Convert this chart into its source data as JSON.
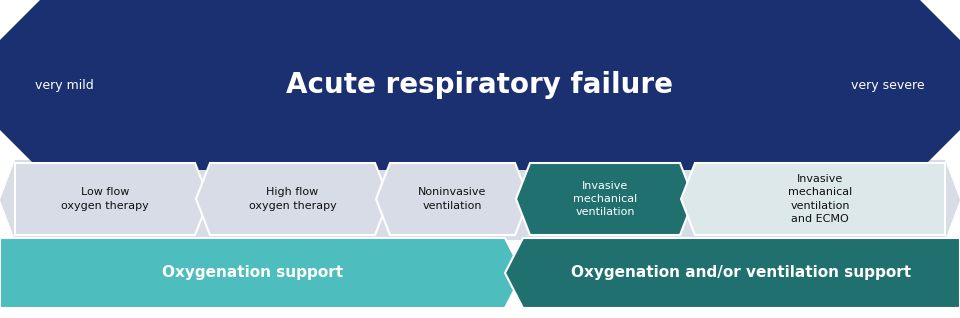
{
  "bg_color": "#ffffff",
  "title": "Acute respiratory failure",
  "title_color": "#ffffff",
  "title_fontsize": 20,
  "very_mild": "very mild",
  "very_severe": "very severe",
  "dark_blue": "#1a3070",
  "teal_dark": "#207070",
  "teal_light": "#4dbdbd",
  "light_gray": "#d8dce6",
  "very_light_gray": "#e8ecf4",
  "boxes": [
    {
      "label": "Low flow\noxygen therapy",
      "text_color": "#111111",
      "color": "#d8dce6"
    },
    {
      "label": "High flow\noxygen therapy",
      "text_color": "#111111",
      "color": "#d8dce6"
    },
    {
      "label": "Noninvasive\nventilation",
      "text_color": "#111111",
      "color": "#d8dce6"
    },
    {
      "label": "Invasive\nmechanical\nventilation",
      "text_color": "#ffffff",
      "color": "#207070"
    },
    {
      "label": "Invasive\nmechanical\nventilation\nand ECMO",
      "text_color": "#111111",
      "color": "#dde8ea"
    }
  ],
  "bottom_bars": [
    {
      "label": "Oxygenation support",
      "color": "#4dbdbd",
      "text_color": "#ffffff"
    },
    {
      "label": "Oxygenation and/or ventilation support",
      "color": "#207070",
      "text_color": "#ffffff"
    }
  ]
}
